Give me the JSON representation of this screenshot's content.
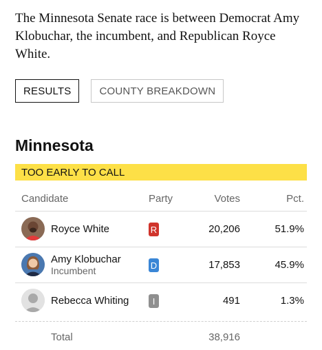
{
  "intro": "The Minnesota Senate race is between Democrat Amy Klobuchar, the incumbent, and Republican Royce White.",
  "tabs": [
    {
      "label": "RESULTS",
      "active": true
    },
    {
      "label": "COUNTY BREAKDOWN",
      "active": false
    }
  ],
  "state": "Minnesota",
  "status_banner": "TOO EARLY TO CALL",
  "table": {
    "headers": {
      "candidate": "Candidate",
      "party": "Party",
      "votes": "Votes",
      "pct": "Pct."
    },
    "rows": [
      {
        "name": "Royce White",
        "subtitle": "",
        "party": "R",
        "party_color": "#d0342c",
        "votes": "20,206",
        "pct": "51.9%"
      },
      {
        "name": "Amy Klobuchar",
        "subtitle": "Incumbent",
        "party": "D",
        "party_color": "#3a86d6",
        "votes": "17,853",
        "pct": "45.9%"
      },
      {
        "name": "Rebecca Whiting",
        "subtitle": "",
        "party": "I",
        "party_color": "#8f8f8f",
        "votes": "491",
        "pct": "1.3%"
      }
    ],
    "total_label": "Total",
    "total_votes": "38,916"
  },
  "colors": {
    "banner": "#fde047",
    "republican": "#d0342c",
    "democrat": "#3a86d6",
    "independent": "#8f8f8f"
  }
}
